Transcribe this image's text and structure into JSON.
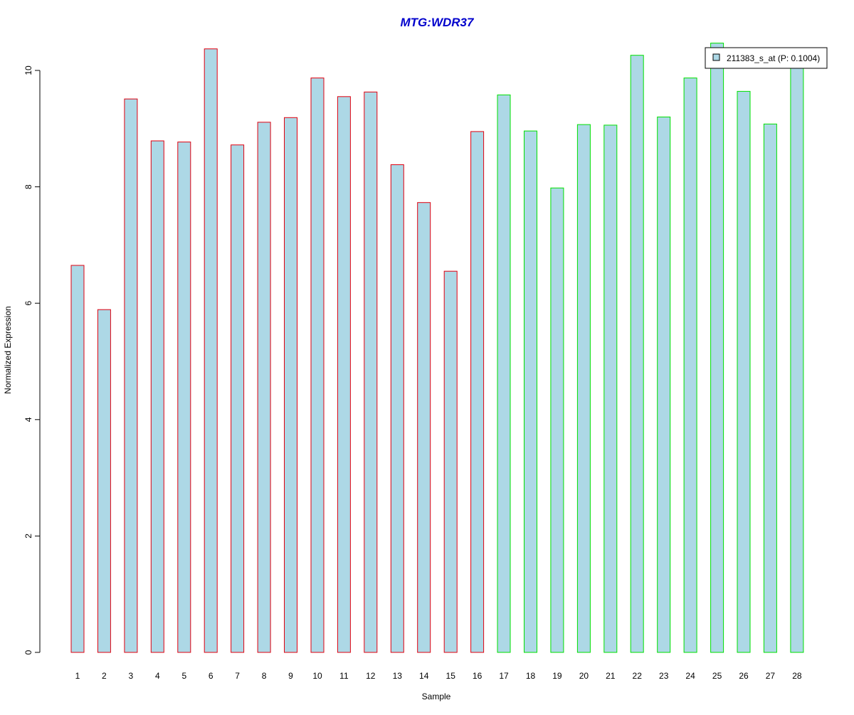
{
  "chart_data": {
    "type": "bar",
    "title": "MTG:WDR37",
    "xlabel": "Sample",
    "ylabel": "Normalized Expression",
    "ylim": [
      0,
      10.5
    ],
    "yticks": [
      0,
      2,
      4,
      6,
      8,
      10
    ],
    "categories": [
      "1",
      "2",
      "3",
      "4",
      "5",
      "6",
      "7",
      "8",
      "9",
      "10",
      "11",
      "12",
      "13",
      "14",
      "15",
      "16",
      "17",
      "18",
      "19",
      "20",
      "21",
      "22",
      "23",
      "24",
      "25",
      "26",
      "27",
      "28"
    ],
    "series": [
      {
        "name": "211383_s_at (P: 0.1004)",
        "values": [
          6.65,
          5.89,
          9.51,
          8.79,
          8.77,
          10.37,
          8.72,
          9.11,
          9.19,
          9.87,
          9.55,
          9.63,
          8.38,
          7.73,
          6.55,
          8.95,
          9.58,
          8.96,
          7.98,
          9.07,
          9.06,
          10.26,
          9.2,
          9.87,
          10.47,
          9.64,
          9.08,
          10.07
        ],
        "fill": "#add8e6"
      }
    ],
    "group_outline_colors": [
      "#e0000f",
      "#e0000f",
      "#e0000f",
      "#e0000f",
      "#e0000f",
      "#e0000f",
      "#e0000f",
      "#e0000f",
      "#e0000f",
      "#e0000f",
      "#e0000f",
      "#e0000f",
      "#e0000f",
      "#e0000f",
      "#e0000f",
      "#e0000f",
      "#00e000",
      "#00e000",
      "#00e000",
      "#00e000",
      "#00e000",
      "#00e000",
      "#00e000",
      "#00e000",
      "#00e000",
      "#00e000",
      "#00e000",
      "#00e000"
    ],
    "title_color": "#0000cc",
    "legend_position": "top-right",
    "grid": false
  }
}
